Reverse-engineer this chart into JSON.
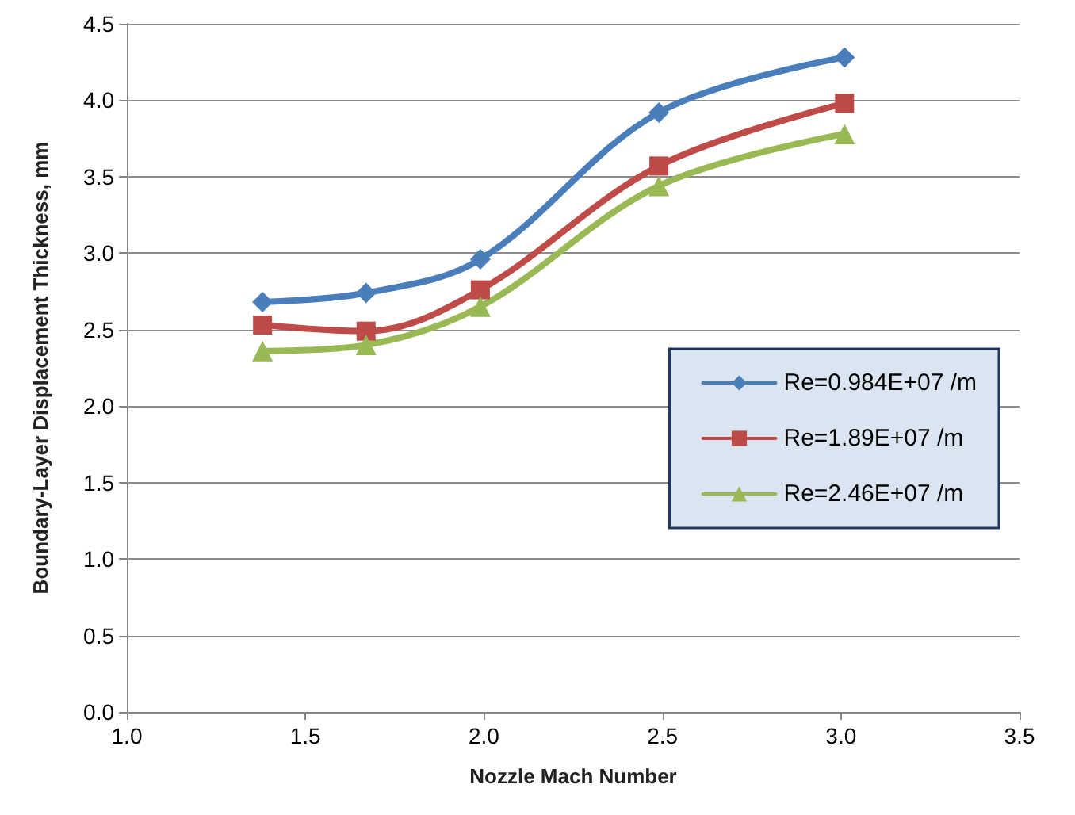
{
  "chart_data": {
    "type": "line",
    "xlabel": "Nozzle Mach Number",
    "ylabel": "Boundary-Layer Displacement Thickness, mm",
    "x": [
      1.38,
      1.67,
      1.99,
      2.49,
      3.01
    ],
    "series": [
      {
        "name": "Re=0.984E+07 /m",
        "color": "#4a7ebb",
        "marker": "diamond",
        "values": [
          2.68,
          2.74,
          2.96,
          3.92,
          4.28
        ]
      },
      {
        "name": "Re=1.89E+07 /m",
        "color": "#be4b48",
        "marker": "square",
        "values": [
          2.53,
          2.49,
          2.76,
          3.57,
          3.98
        ]
      },
      {
        "name": "Re=2.46E+07 /m",
        "color": "#98b954",
        "marker": "triangle",
        "values": [
          2.36,
          2.4,
          2.65,
          3.44,
          3.78
        ]
      }
    ],
    "xlim": [
      1.0,
      3.5
    ],
    "xticks": [
      {
        "value": 1.0,
        "label": "1.0"
      },
      {
        "value": 1.5,
        "label": "1.5"
      },
      {
        "value": 2.0,
        "label": "2.0"
      },
      {
        "value": 2.5,
        "label": "2.5"
      },
      {
        "value": 3.0,
        "label": "3.0"
      },
      {
        "value": 3.5,
        "label": "3.5"
      }
    ],
    "ylim": [
      0.0,
      4.5
    ],
    "yticks": [
      {
        "value": 0.0,
        "label": "0.0"
      },
      {
        "value": 0.5,
        "label": "0.5"
      },
      {
        "value": 1.0,
        "label": "1.0"
      },
      {
        "value": 1.5,
        "label": "1.5"
      },
      {
        "value": 2.0,
        "label": "2.0"
      },
      {
        "value": 2.5,
        "label": "2.5"
      },
      {
        "value": 3.0,
        "label": "3.0"
      },
      {
        "value": 3.5,
        "label": "3.5"
      },
      {
        "value": 4.0,
        "label": "4.0"
      },
      {
        "value": 4.5,
        "label": "4.5"
      }
    ],
    "grid": "y",
    "legend": "right",
    "line_style": "solid"
  }
}
